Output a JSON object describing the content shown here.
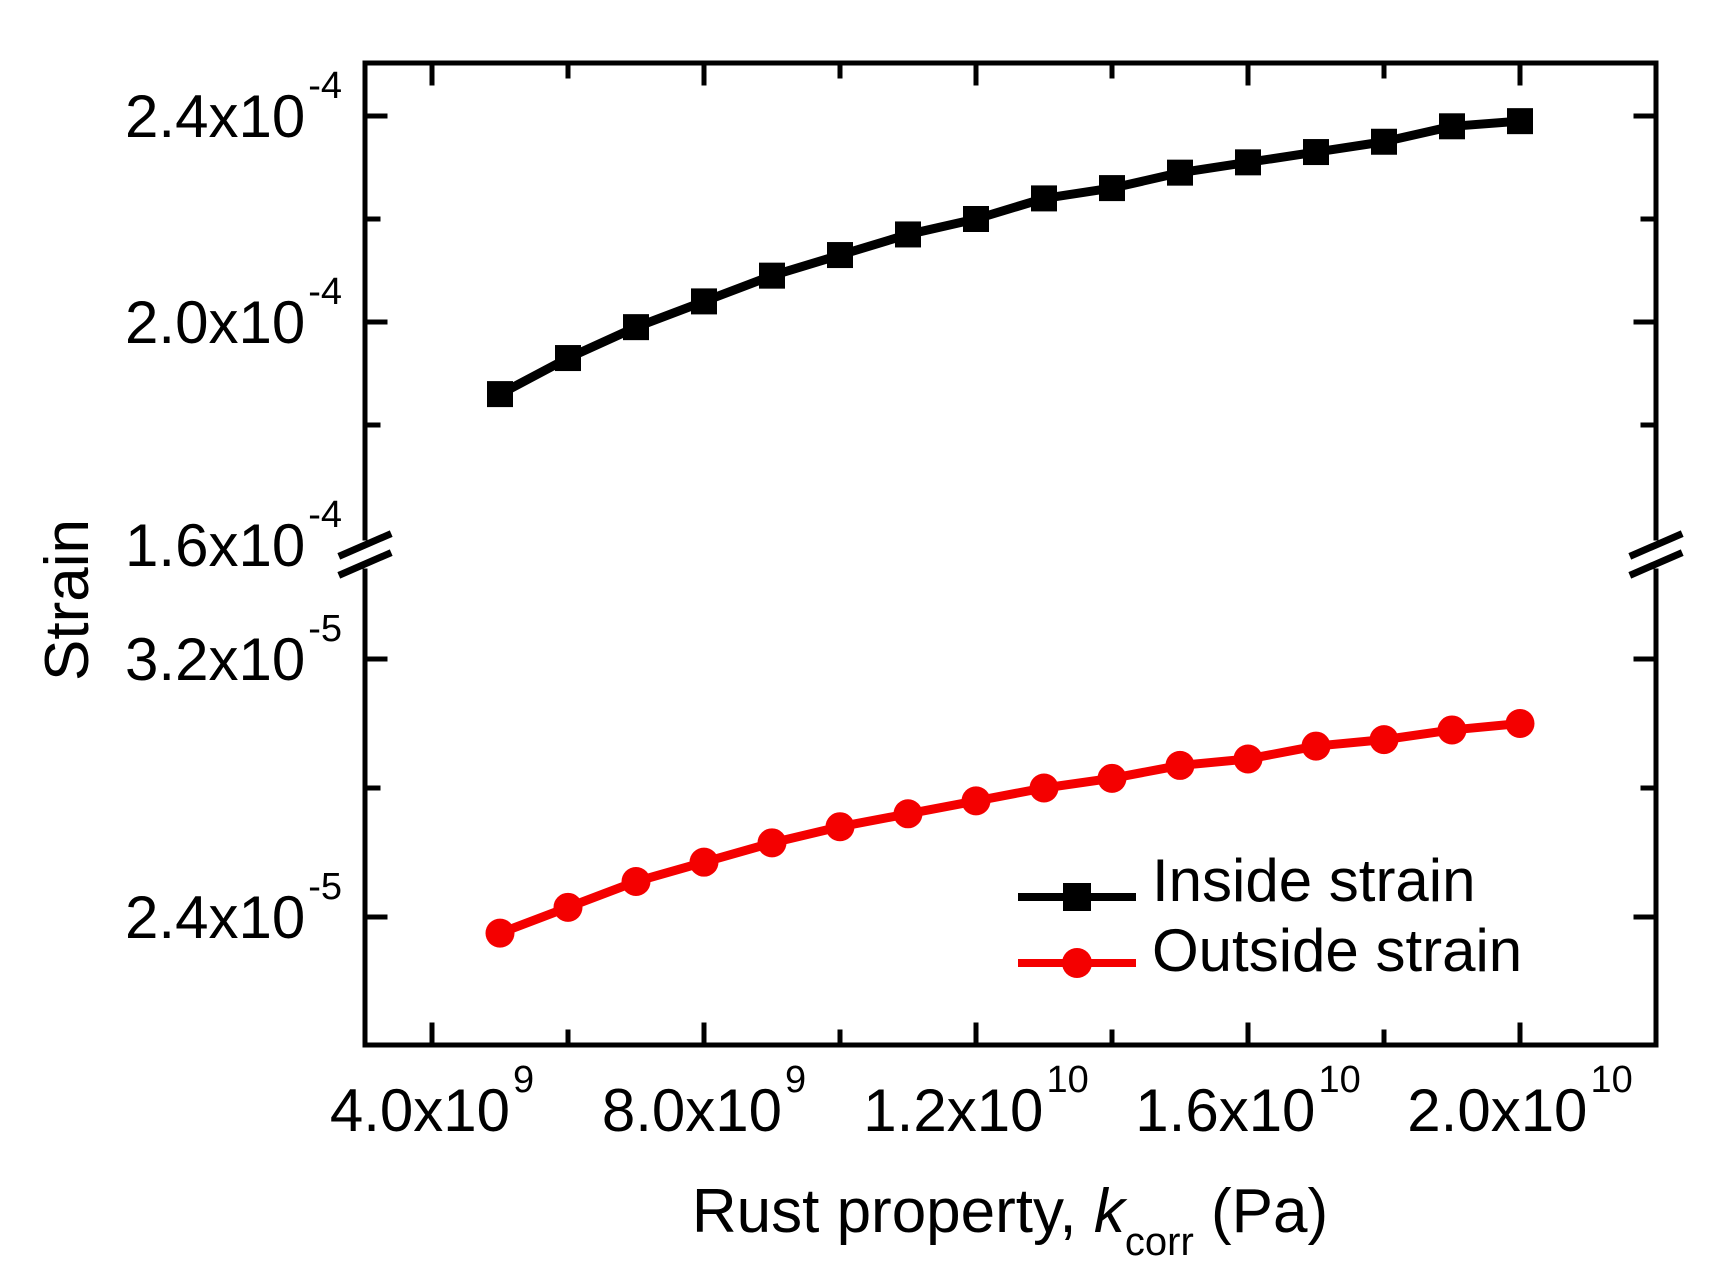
{
  "figure": {
    "background": "#ffffff",
    "frame_color": "#000000"
  },
  "chart_data": {
    "type": "line",
    "title": "",
    "ylabel": "Strain",
    "xlabel_parts": {
      "prefix": "Rust property, ",
      "symbol": "k",
      "subscript": "corr",
      "suffix": " (Pa)"
    },
    "x_Pa": [
      5000000000.0,
      6000000000.0,
      7000000000.0,
      8000000000.0,
      9000000000.0,
      10000000000.0,
      11000000000.0,
      12000000000.0,
      13000000000.0,
      14000000000.0,
      15000000000.0,
      16000000000.0,
      17000000000.0,
      18000000000.0,
      19000000000.0,
      20000000000.0
    ],
    "series": [
      {
        "name": "Inside strain",
        "color": "#000000",
        "marker": "square",
        "values": [
          0.000186,
          0.000193,
          0.000199,
          0.000204,
          0.000209,
          0.000213,
          0.000217,
          0.00022,
          0.000224,
          0.000226,
          0.000229,
          0.000231,
          0.000233,
          0.000235,
          0.000238,
          0.000239
        ]
      },
      {
        "name": "Outside strain",
        "color": "#f40000",
        "marker": "circle",
        "values": [
          2.35e-05,
          2.43e-05,
          2.51e-05,
          2.57e-05,
          2.63e-05,
          2.68e-05,
          2.72e-05,
          2.76e-05,
          2.8e-05,
          2.83e-05,
          2.87e-05,
          2.89e-05,
          2.93e-05,
          2.95e-05,
          2.98e-05,
          3e-05
        ]
      }
    ],
    "x_axis": {
      "range_Pa": [
        3000000000.0,
        22000000000.0
      ],
      "major_ticks_Pa": [
        4000000000.0,
        8000000000.0,
        12000000000.0,
        16000000000.0,
        20000000000.0
      ],
      "minor_ticks_Pa": [
        6000000000.0,
        10000000000.0,
        14000000000.0,
        18000000000.0
      ],
      "tick_labels": [
        {
          "base": "4.0x10",
          "exp": "9"
        },
        {
          "base": "8.0x10",
          "exp": "9"
        },
        {
          "base": "1.2x10",
          "exp": "10"
        },
        {
          "base": "1.6x10",
          "exp": "10"
        },
        {
          "base": "2.0x10",
          "exp": "10"
        }
      ]
    },
    "y_axis": {
      "broken": true,
      "top_segment": {
        "range": [
          0.000155,
          0.00025
        ],
        "major_ticks": [
          0.00024,
          0.0002
        ],
        "minor_ticks": [
          0.00022,
          0.00018
        ],
        "tick_labels": [
          {
            "base": "2.4x10",
            "exp": "-4"
          },
          {
            "base": "2.0x10",
            "exp": "-4"
          }
        ]
      },
      "break_label": {
        "base": "1.6x10",
        "exp": "-4"
      },
      "bottom_segment": {
        "range": [
          2e-05,
          3.5e-05
        ],
        "major_ticks": [
          3.2e-05,
          2.4e-05
        ],
        "minor_ticks": [
          2.8e-05
        ],
        "tick_labels": [
          {
            "base": "3.2x10",
            "exp": "-5"
          },
          {
            "base": "2.4x10",
            "exp": "-5"
          }
        ]
      }
    },
    "legend": {
      "position": "lower-right",
      "entries": [
        "Inside strain",
        "Outside strain"
      ]
    }
  }
}
